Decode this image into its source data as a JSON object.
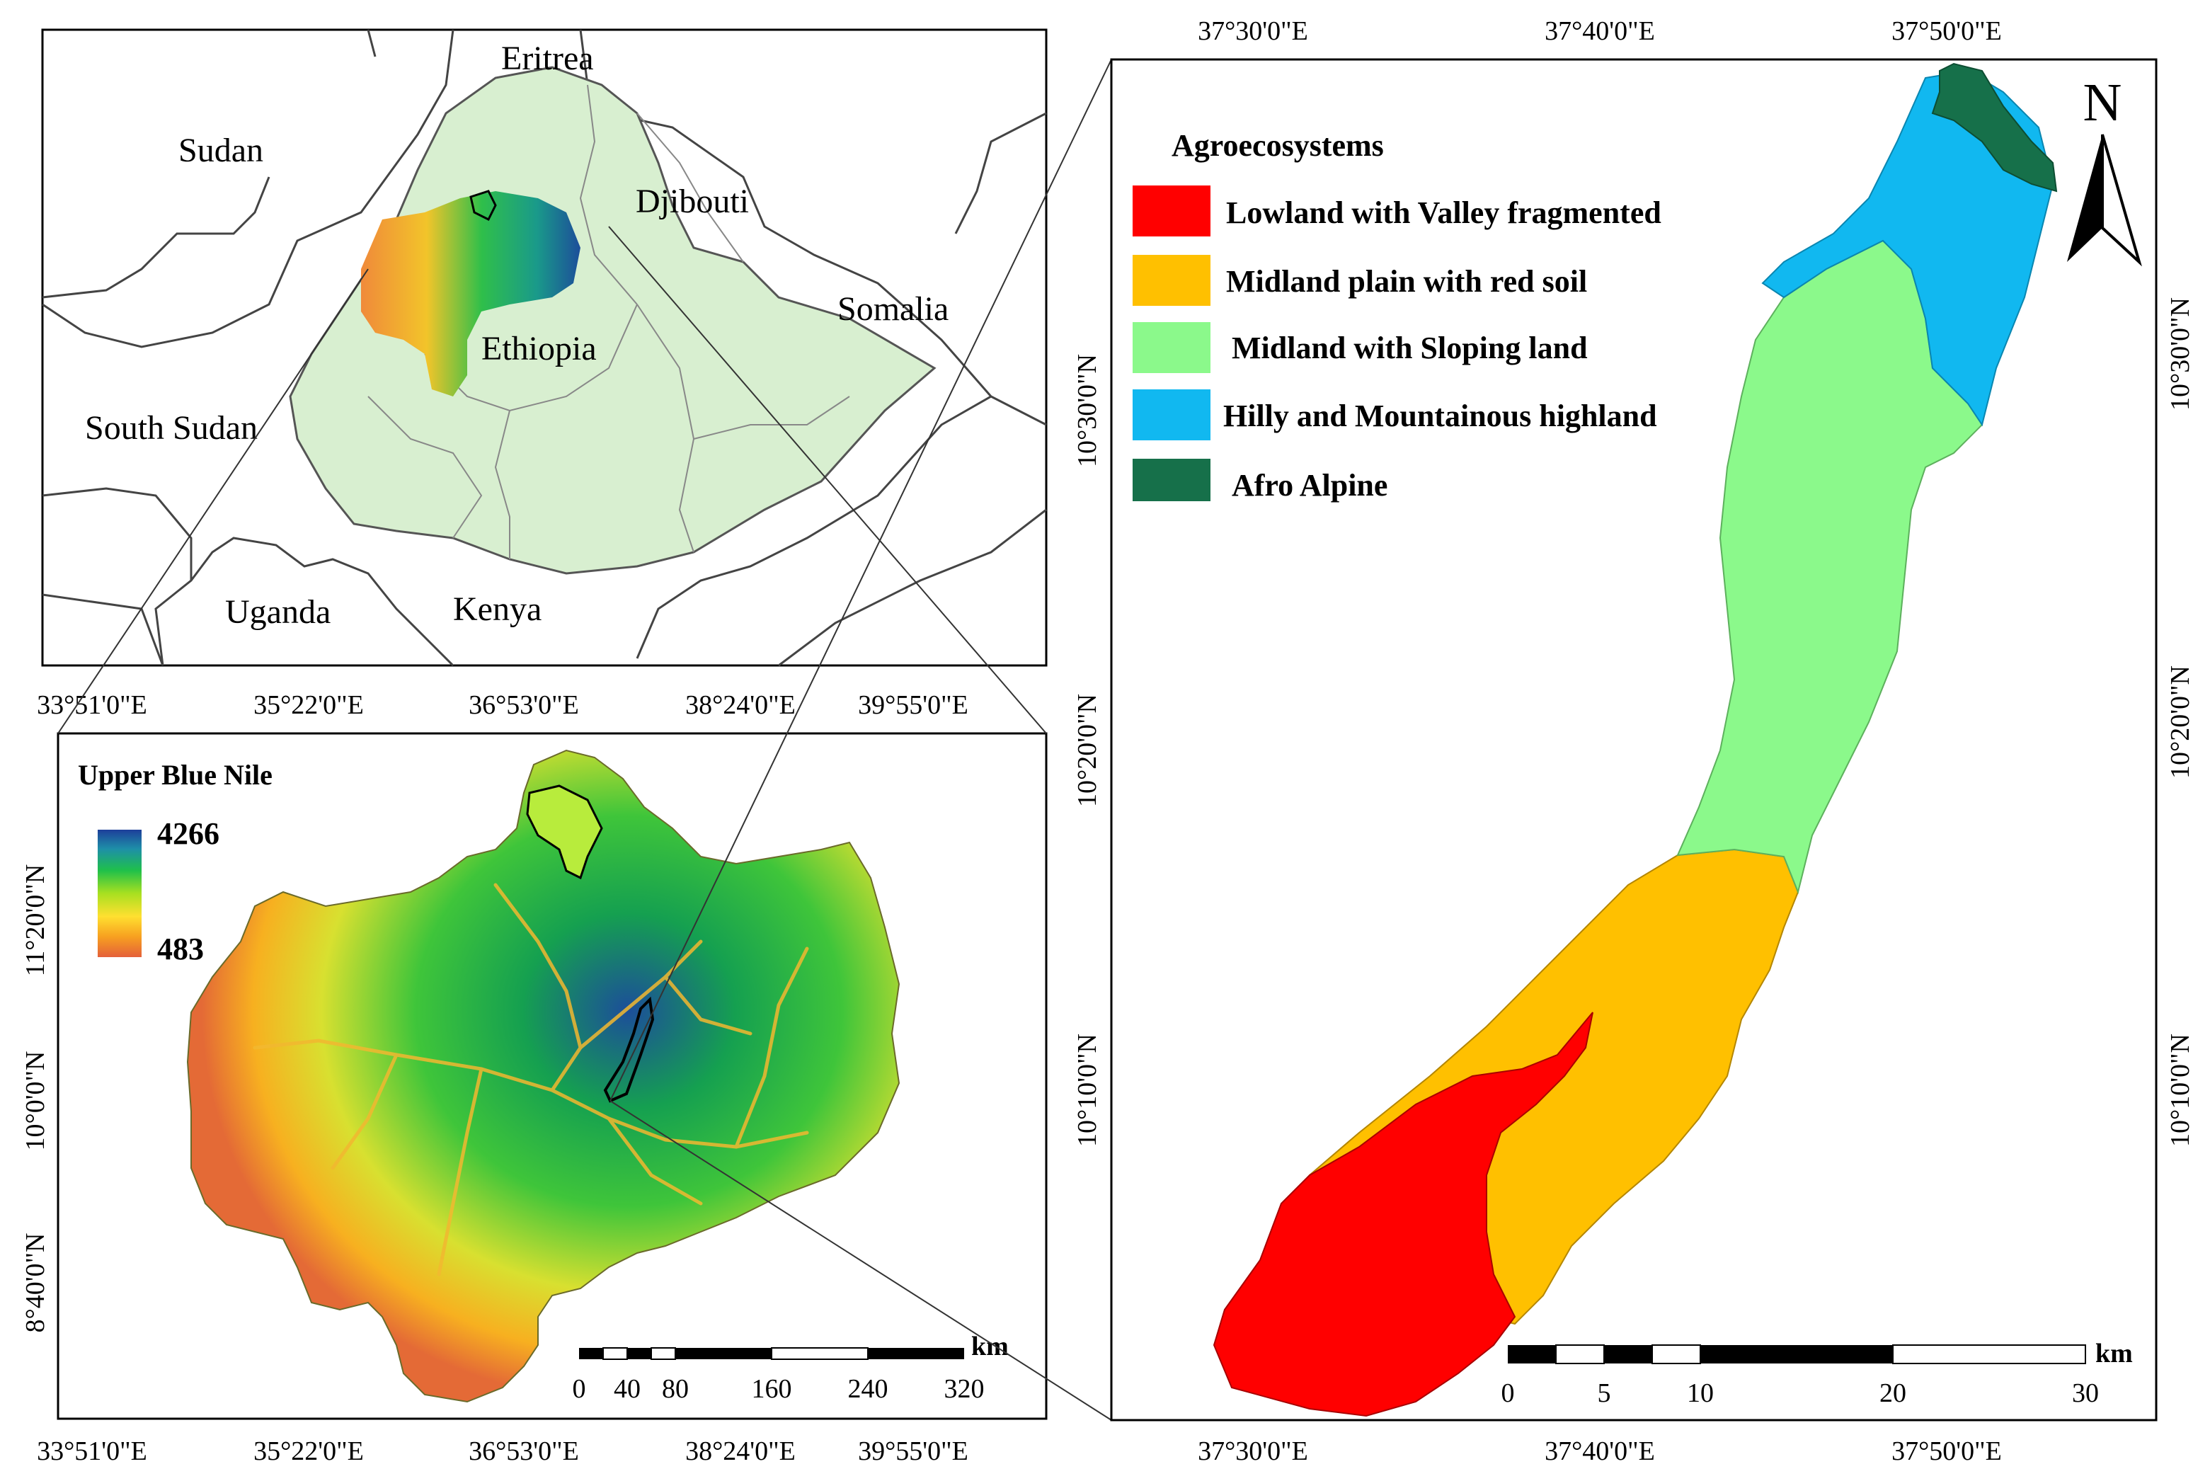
{
  "locator_map": {
    "countries": [
      {
        "name": "Eritrea"
      },
      {
        "name": "Sudan"
      },
      {
        "name": "Djibouti"
      },
      {
        "name": "Somalia"
      },
      {
        "name": "Ethiopia"
      },
      {
        "name": "South Sudan"
      },
      {
        "name": "Uganda"
      },
      {
        "name": "Kenya"
      }
    ],
    "colors": {
      "ethiopia_fill": "#d8efd0",
      "outline": "#555555"
    }
  },
  "basin_map": {
    "title": "Upper Blue Nile",
    "elevation_legend": {
      "max": "4266",
      "min": "483",
      "colors": [
        "#1d3f9a",
        "#1e8fa8",
        "#1fc04a",
        "#a8e020",
        "#ffe030",
        "#f7a020",
        "#e4603a"
      ]
    },
    "top_axis_labels": [
      "33°51'0\"E",
      "35°22'0\"E",
      "36°53'0\"E",
      "38°24'0\"E",
      "39°55'0\"E"
    ],
    "bottom_axis_labels": [
      "33°51'0\"E",
      "35°22'0\"E",
      "36°53'0\"E",
      "38°24'0\"E",
      "39°55'0\"E"
    ],
    "left_axis_labels": [
      "11°20'0\"N",
      "10°0'0\"N",
      "8°40'0\"N"
    ],
    "scale_bar": {
      "unit": "km",
      "ticks": [
        "0",
        "40",
        "80",
        "160",
        "240",
        "320"
      ]
    }
  },
  "detail_map": {
    "legend_title": "Agroecosystems",
    "legend": [
      {
        "label": "Lowland with Valley fragmented",
        "color": "#ff0000"
      },
      {
        "label": "Midland plain with red soil",
        "color": "#ffc000"
      },
      {
        "label": "Midland with Sloping land",
        "color": "#8bf98b"
      },
      {
        "label": "Hilly and Mountainous highland",
        "color": "#11b8f0"
      },
      {
        "label": "Afro Alpine",
        "color": "#16704a"
      }
    ],
    "north_arrow": "N",
    "top_axis_labels": [
      "37°30'0\"E",
      "37°40'0\"E",
      "37°50'0\"E"
    ],
    "bottom_axis_labels": [
      "37°30'0\"E",
      "37°40'0\"E",
      "37°50'0\"E"
    ],
    "left_axis_labels": [
      "10°30'0\"N",
      "10°20'0\"N",
      "10°10'0\"N"
    ],
    "right_axis_labels": [
      "10°30'0\"N",
      "10°20'0\"N",
      "10°10'0\"N"
    ],
    "scale_bar": {
      "unit": "km",
      "ticks": [
        "0",
        "5",
        "10",
        "20",
        "30"
      ]
    }
  }
}
